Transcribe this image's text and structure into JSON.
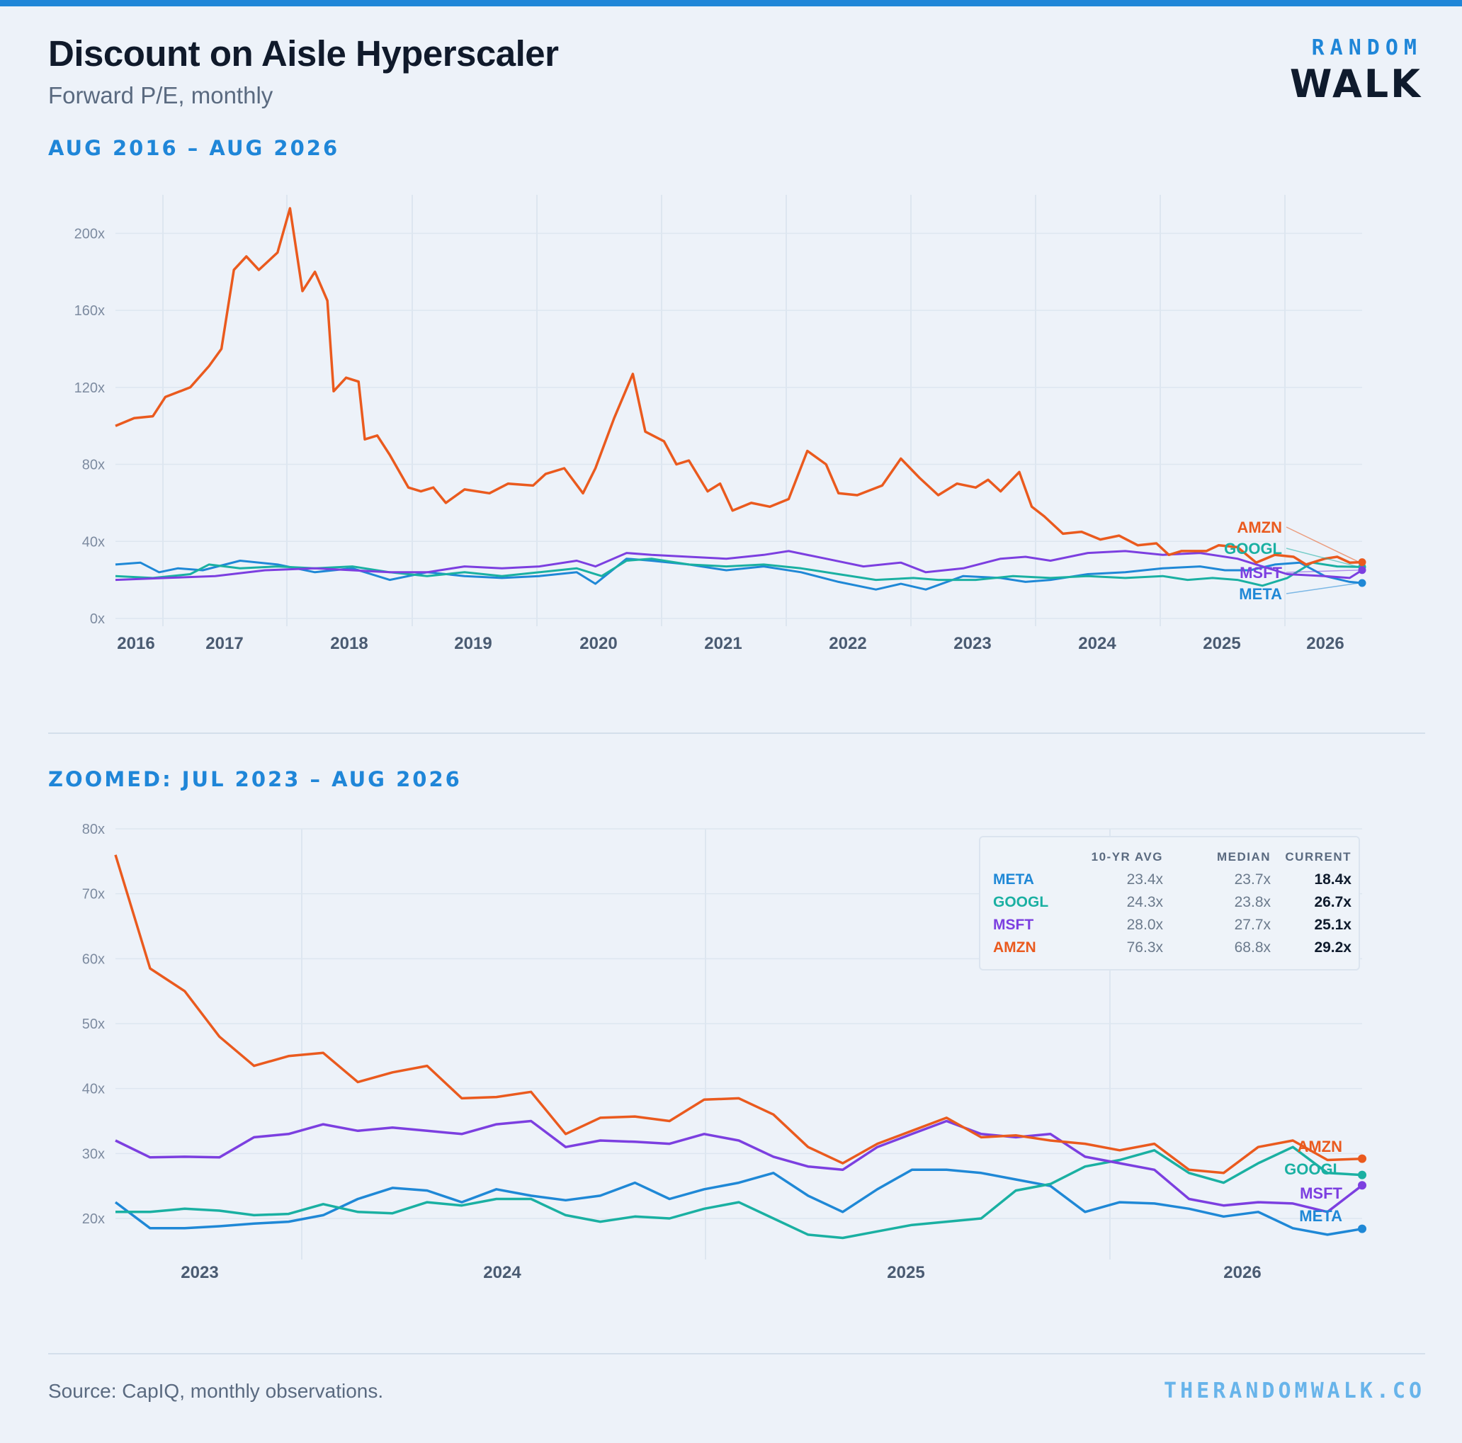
{
  "header": {
    "title": "Discount on Aisle Hyperscaler",
    "subtitle": "Forward P/E, monthly",
    "logo_top": "RANDOM",
    "logo_bottom": "WALK"
  },
  "colors": {
    "META": "#1f88d6",
    "GOOGL": "#1ab0a2",
    "MSFT": "#7c3fe0",
    "AMZN": "#ea5a1e",
    "accent": "#1f86d8",
    "grid": "#dde6f0"
  },
  "stats": {
    "headers": [
      "10-YR AVG",
      "MEDIAN",
      "CURRENT"
    ],
    "rows": [
      {
        "ticker": "META",
        "avg": "23.4x",
        "median": "23.7x",
        "current": "18.4x"
      },
      {
        "ticker": "GOOGL",
        "avg": "24.3x",
        "median": "23.8x",
        "current": "26.7x"
      },
      {
        "ticker": "MSFT",
        "avg": "28.0x",
        "median": "27.7x",
        "current": "25.1x"
      },
      {
        "ticker": "AMZN",
        "avg": "76.3x",
        "median": "68.8x",
        "current": "29.2x"
      }
    ]
  },
  "footer": {
    "source": "Source: CapIQ, monthly observations.",
    "site": "THERANDOMWALK.CO"
  },
  "chart_data": [
    {
      "type": "line",
      "title": "AUG 2016 – AUG 2026",
      "xlabel": "",
      "ylabel": "",
      "x_tick_labels": [
        "2016",
        "2017",
        "2018",
        "2019",
        "2020",
        "2021",
        "2022",
        "2023",
        "2024",
        "2025",
        "2026"
      ],
      "y_tick_labels": [
        "0x",
        "40x",
        "80x",
        "120x",
        "160x",
        "200x"
      ],
      "ylim": [
        0,
        220
      ],
      "x_start": 2016.6,
      "x_end": 2026.6,
      "grid": true,
      "series": [
        {
          "name": "AMZN",
          "points": [
            [
              2016.6,
              100
            ],
            [
              2016.75,
              104
            ],
            [
              2016.9,
              105
            ],
            [
              2017.0,
              115
            ],
            [
              2017.2,
              120
            ],
            [
              2017.35,
              131
            ],
            [
              2017.45,
              140
            ],
            [
              2017.55,
              181
            ],
            [
              2017.65,
              188
            ],
            [
              2017.75,
              181
            ],
            [
              2017.9,
              190
            ],
            [
              2018.0,
              213
            ],
            [
              2018.1,
              170
            ],
            [
              2018.2,
              180
            ],
            [
              2018.3,
              165
            ],
            [
              2018.35,
              118
            ],
            [
              2018.45,
              125
            ],
            [
              2018.55,
              123
            ],
            [
              2018.6,
              93
            ],
            [
              2018.7,
              95
            ],
            [
              2018.8,
              85
            ],
            [
              2018.95,
              68
            ],
            [
              2019.05,
              66
            ],
            [
              2019.15,
              68
            ],
            [
              2019.25,
              60
            ],
            [
              2019.4,
              67
            ],
            [
              2019.6,
              65
            ],
            [
              2019.75,
              70
            ],
            [
              2019.95,
              69
            ],
            [
              2020.05,
              75
            ],
            [
              2020.2,
              78
            ],
            [
              2020.35,
              65
            ],
            [
              2020.45,
              78
            ],
            [
              2020.6,
              104
            ],
            [
              2020.75,
              127
            ],
            [
              2020.85,
              97
            ],
            [
              2021.0,
              92
            ],
            [
              2021.1,
              80
            ],
            [
              2021.2,
              82
            ],
            [
              2021.35,
              66
            ],
            [
              2021.45,
              70
            ],
            [
              2021.55,
              56
            ],
            [
              2021.7,
              60
            ],
            [
              2021.85,
              58
            ],
            [
              2022.0,
              62
            ],
            [
              2022.15,
              87
            ],
            [
              2022.3,
              80
            ],
            [
              2022.4,
              65
            ],
            [
              2022.55,
              64
            ],
            [
              2022.75,
              69
            ],
            [
              2022.9,
              83
            ],
            [
              2023.05,
              73
            ],
            [
              2023.2,
              64
            ],
            [
              2023.35,
              70
            ],
            [
              2023.5,
              68
            ],
            [
              2023.6,
              72
            ],
            [
              2023.7,
              66
            ],
            [
              2023.85,
              76
            ],
            [
              2023.95,
              58
            ],
            [
              2024.05,
              53
            ],
            [
              2024.2,
              44
            ],
            [
              2024.35,
              45
            ],
            [
              2024.5,
              41
            ],
            [
              2024.65,
              43
            ],
            [
              2024.8,
              38
            ],
            [
              2024.95,
              39
            ],
            [
              2025.05,
              33
            ],
            [
              2025.15,
              35
            ],
            [
              2025.35,
              35
            ],
            [
              2025.45,
              38
            ],
            [
              2025.6,
              37
            ],
            [
              2025.75,
              29
            ],
            [
              2025.9,
              33
            ],
            [
              2026.05,
              32
            ],
            [
              2026.15,
              28
            ],
            [
              2026.3,
              31
            ],
            [
              2026.4,
              32
            ],
            [
              2026.5,
              29
            ],
            [
              2026.6,
              29.2
            ]
          ]
        },
        {
          "name": "GOOGL",
          "points": [
            [
              2016.6,
              22
            ],
            [
              2016.9,
              21
            ],
            [
              2017.2,
              23
            ],
            [
              2017.35,
              28
            ],
            [
              2017.6,
              26
            ],
            [
              2017.9,
              27
            ],
            [
              2018.2,
              26
            ],
            [
              2018.5,
              27
            ],
            [
              2018.8,
              24
            ],
            [
              2019.1,
              22
            ],
            [
              2019.4,
              24
            ],
            [
              2019.7,
              22
            ],
            [
              2020.0,
              24
            ],
            [
              2020.3,
              26
            ],
            [
              2020.5,
              22
            ],
            [
              2020.7,
              30
            ],
            [
              2020.9,
              31
            ],
            [
              2021.2,
              28
            ],
            [
              2021.5,
              27
            ],
            [
              2021.8,
              28
            ],
            [
              2022.1,
              26
            ],
            [
              2022.4,
              23
            ],
            [
              2022.7,
              20
            ],
            [
              2023.0,
              21
            ],
            [
              2023.2,
              20
            ],
            [
              2023.5,
              20
            ],
            [
              2023.8,
              22
            ],
            [
              2024.1,
              21
            ],
            [
              2024.4,
              22
            ],
            [
              2024.7,
              21
            ],
            [
              2025.0,
              22
            ],
            [
              2025.2,
              20
            ],
            [
              2025.4,
              21
            ],
            [
              2025.6,
              20
            ],
            [
              2025.8,
              17
            ],
            [
              2026.0,
              21
            ],
            [
              2026.2,
              29
            ],
            [
              2026.4,
              27
            ],
            [
              2026.6,
              26.7
            ]
          ]
        },
        {
          "name": "MSFT",
          "points": [
            [
              2016.6,
              20
            ],
            [
              2017.0,
              21
            ],
            [
              2017.4,
              22
            ],
            [
              2017.8,
              25
            ],
            [
              2018.2,
              26
            ],
            [
              2018.5,
              25
            ],
            [
              2018.8,
              24
            ],
            [
              2019.1,
              24
            ],
            [
              2019.4,
              27
            ],
            [
              2019.7,
              26
            ],
            [
              2020.0,
              27
            ],
            [
              2020.3,
              30
            ],
            [
              2020.45,
              27
            ],
            [
              2020.7,
              34
            ],
            [
              2020.9,
              33
            ],
            [
              2021.2,
              32
            ],
            [
              2021.5,
              31
            ],
            [
              2021.8,
              33
            ],
            [
              2022.0,
              35
            ],
            [
              2022.3,
              31
            ],
            [
              2022.6,
              27
            ],
            [
              2022.9,
              29
            ],
            [
              2023.1,
              24
            ],
            [
              2023.4,
              26
            ],
            [
              2023.7,
              31
            ],
            [
              2023.9,
              32
            ],
            [
              2024.1,
              30
            ],
            [
              2024.4,
              34
            ],
            [
              2024.7,
              35
            ],
            [
              2025.0,
              33
            ],
            [
              2025.3,
              34
            ],
            [
              2025.6,
              31
            ],
            [
              2025.8,
              27
            ],
            [
              2026.0,
              23
            ],
            [
              2026.3,
              22
            ],
            [
              2026.5,
              21
            ],
            [
              2026.6,
              25.1
            ]
          ]
        },
        {
          "name": "META",
          "points": [
            [
              2016.6,
              28
            ],
            [
              2016.8,
              29
            ],
            [
              2016.95,
              24
            ],
            [
              2017.1,
              26
            ],
            [
              2017.3,
              25
            ],
            [
              2017.6,
              30
            ],
            [
              2017.9,
              28
            ],
            [
              2018.2,
              24
            ],
            [
              2018.5,
              26
            ],
            [
              2018.8,
              20
            ],
            [
              2019.1,
              24
            ],
            [
              2019.4,
              22
            ],
            [
              2019.7,
              21
            ],
            [
              2020.0,
              22
            ],
            [
              2020.3,
              24
            ],
            [
              2020.45,
              18
            ],
            [
              2020.7,
              31
            ],
            [
              2020.9,
              30
            ],
            [
              2021.2,
              28
            ],
            [
              2021.5,
              25
            ],
            [
              2021.8,
              27
            ],
            [
              2022.1,
              24
            ],
            [
              2022.4,
              19
            ],
            [
              2022.7,
              15
            ],
            [
              2022.9,
              18
            ],
            [
              2023.1,
              15
            ],
            [
              2023.4,
              22
            ],
            [
              2023.7,
              21
            ],
            [
              2023.9,
              19
            ],
            [
              2024.1,
              20
            ],
            [
              2024.4,
              23
            ],
            [
              2024.7,
              24
            ],
            [
              2025.0,
              26
            ],
            [
              2025.3,
              27
            ],
            [
              2025.5,
              25
            ],
            [
              2025.7,
              25
            ],
            [
              2025.9,
              28
            ],
            [
              2026.1,
              29
            ],
            [
              2026.3,
              22
            ],
            [
              2026.5,
              19
            ],
            [
              2026.6,
              18.4
            ]
          ]
        }
      ]
    },
    {
      "type": "line",
      "title": "ZOOMED: JUL 2023 – AUG 2026",
      "xlabel": "",
      "ylabel": "",
      "x_tick_labels": [
        "2023",
        "2024",
        "2025",
        "2026"
      ],
      "y_tick_labels": [
        "20x",
        "30x",
        "40x",
        "50x",
        "60x",
        "70x",
        "80x"
      ],
      "ylim": [
        14,
        80
      ],
      "months": 37,
      "series": [
        {
          "name": "AMZN",
          "values": [
            76,
            58.5,
            55,
            48,
            43.5,
            45,
            45.5,
            41,
            42.5,
            43.5,
            38.5,
            38.7,
            39.5,
            33,
            35.5,
            35.7,
            35,
            38.3,
            38.5,
            36,
            31,
            28.5,
            31.5,
            33.5,
            35.5,
            32.5,
            32.8,
            32,
            31.5,
            30.5,
            31.5,
            27.5,
            27,
            31,
            32,
            29,
            29.2
          ]
        },
        {
          "name": "MSFT",
          "values": [
            32,
            29.4,
            29.5,
            29.4,
            32.5,
            33,
            34.5,
            33.5,
            34,
            33.5,
            33,
            34.5,
            35,
            31,
            32,
            31.8,
            31.5,
            33,
            32,
            29.5,
            28,
            27.5,
            31,
            33,
            35,
            33,
            32.5,
            33,
            29.5,
            28.5,
            27.5,
            23,
            22,
            22.5,
            22.3,
            21,
            25.1
          ]
        },
        {
          "name": "GOOGL",
          "values": [
            21,
            21,
            21.5,
            21.2,
            20.5,
            20.7,
            22.2,
            21,
            20.8,
            22.5,
            22,
            23,
            23,
            20.5,
            19.5,
            20.3,
            20,
            21.5,
            22.5,
            20,
            17.5,
            17,
            18,
            19,
            19.5,
            20,
            24.3,
            25.3,
            28,
            29,
            30.5,
            27,
            25.5,
            28.5,
            31,
            27,
            26.7
          ]
        },
        {
          "name": "META",
          "values": [
            22.5,
            18.5,
            18.5,
            18.8,
            19.2,
            19.5,
            20.5,
            23,
            24.7,
            24.3,
            22.5,
            24.5,
            23.5,
            22.8,
            23.5,
            25.5,
            23,
            24.5,
            25.5,
            27,
            23.5,
            21,
            24.5,
            27.5,
            27.5,
            27,
            26,
            25,
            21,
            22.5,
            22.3,
            21.5,
            20.3,
            21,
            18.5,
            17.5,
            18.4
          ]
        }
      ]
    }
  ]
}
